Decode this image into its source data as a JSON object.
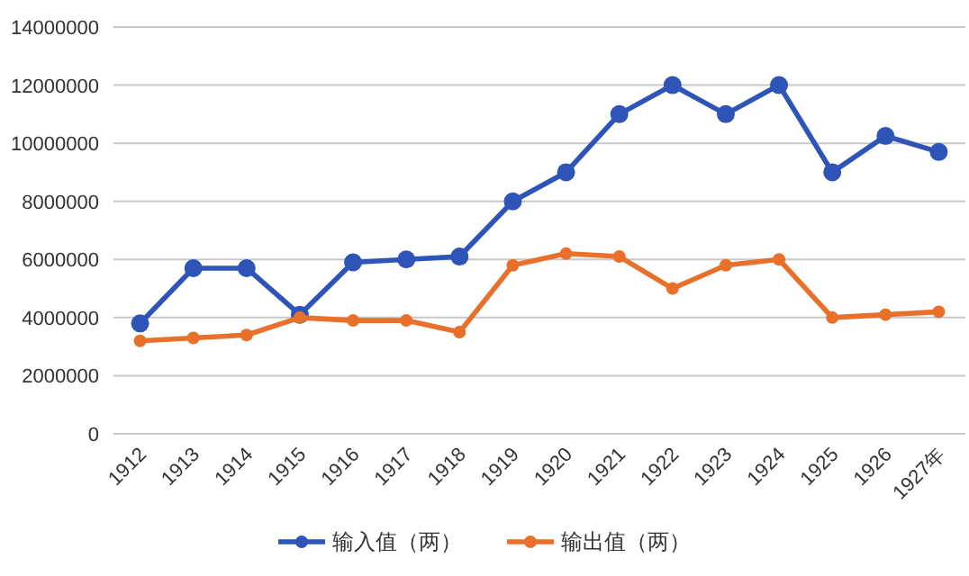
{
  "chart_data": {
    "type": "line",
    "categories": [
      "1912",
      "1913",
      "1914",
      "1915",
      "1916",
      "1917",
      "1918",
      "1919",
      "1920",
      "1921",
      "1922",
      "1923",
      "1924",
      "1925",
      "1926",
      "1927年"
    ],
    "series": [
      {
        "name": "输入值（两）",
        "color": "#2e54b8",
        "values": [
          3800000,
          5700000,
          5700000,
          4100000,
          5900000,
          6000000,
          6100000,
          8000000,
          9000000,
          11000000,
          12000000,
          11000000,
          12000000,
          9000000,
          10250000,
          9700000
        ]
      },
      {
        "name": "输出值（两）",
        "color": "#e8702a",
        "values": [
          3200000,
          3300000,
          3400000,
          4000000,
          3900000,
          3900000,
          3500000,
          5800000,
          6200000,
          6100000,
          5000000,
          5800000,
          6000000,
          4000000,
          4100000,
          4200000
        ]
      }
    ],
    "ylim": [
      0,
      14000000
    ],
    "yticks": [
      0,
      2000000,
      4000000,
      6000000,
      8000000,
      10000000,
      12000000,
      14000000
    ],
    "grid": "y",
    "legend": "bottom",
    "marker": "circle",
    "line_style": "solid"
  }
}
